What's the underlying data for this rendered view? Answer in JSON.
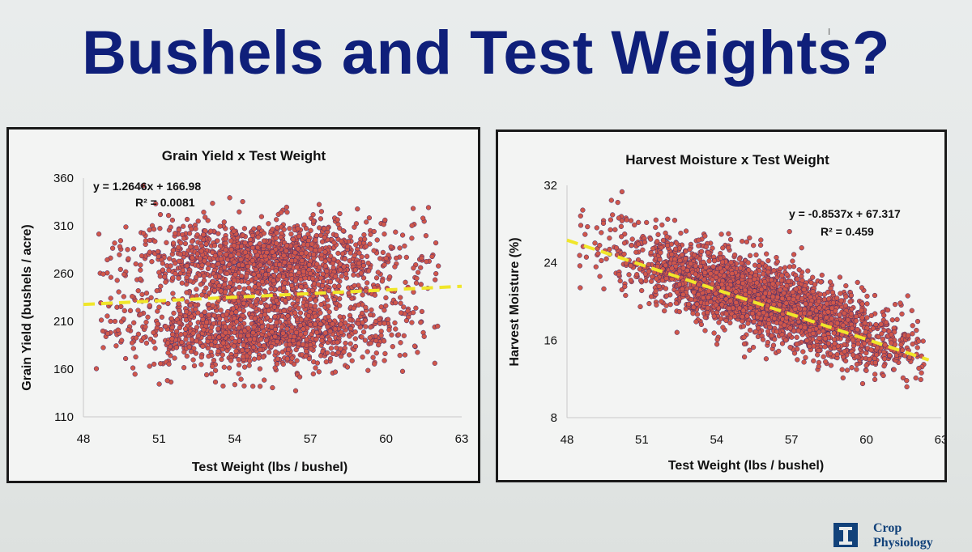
{
  "slide": {
    "title": "Bushels and Test Weights?",
    "logo_text_line1": "Crop",
    "logo_text_line2": "Physiology",
    "cursor_glyph": "I"
  },
  "colors": {
    "title": "#0f1f7a",
    "point_fill": "#d0574a",
    "point_stroke": "#3a2a6e",
    "trendline": "#f0e62a",
    "logo": "#12427a"
  },
  "chart_data": [
    {
      "type": "scatter",
      "title": "Grain Yield x Test Weight",
      "xlabel": "Test Weight (lbs / bushel)",
      "ylabel": "Grain Yield (bushels / acre)",
      "xlim": [
        48,
        63
      ],
      "ylim": [
        110,
        360
      ],
      "x_ticks": [
        "48",
        "51",
        "54",
        "57",
        "60",
        "63"
      ],
      "y_ticks": [
        "110",
        "160",
        "210",
        "260",
        "310",
        "360"
      ],
      "equation": "y = 1.2646x + 166.98",
      "r_squared": "R² = 0.0081",
      "trendline": {
        "slope": 1.2646,
        "intercept": 166.98,
        "x_range": [
          48,
          63
        ],
        "style": "dashed"
      },
      "grid": false,
      "point_cloud": {
        "n_points": 2600,
        "x_range": [
          48.5,
          62.3
        ],
        "clusters": [
          {
            "x_center": 55.5,
            "x_spread": 2.6,
            "y_center": 275,
            "y_spread": 20,
            "weight": 0.45
          },
          {
            "x_center": 55.0,
            "x_spread": 2.6,
            "y_center": 200,
            "y_spread": 22,
            "weight": 0.45
          },
          {
            "x_center": 55.5,
            "x_spread": 3.5,
            "y_center": 240,
            "y_spread": 40,
            "weight": 0.1
          }
        ]
      }
    },
    {
      "type": "scatter",
      "title": "Harvest Moisture x Test Weight",
      "xlabel": "Test Weight (lbs / bushel)",
      "ylabel": "Harvest Moisture (%)",
      "xlim": [
        48,
        63
      ],
      "ylim": [
        8,
        32
      ],
      "x_ticks": [
        "48",
        "51",
        "54",
        "57",
        "60",
        "63"
      ],
      "y_ticks": [
        "8",
        "16",
        "24",
        "32"
      ],
      "equation": "y = -0.8537x + 67.317",
      "r_squared": "R² = 0.459",
      "trendline": {
        "slope": -0.8537,
        "intercept": 67.317,
        "x_range": [
          48,
          62.5
        ],
        "style": "dashed"
      },
      "grid": false,
      "point_cloud": {
        "n_points": 2600,
        "x_range": [
          48.5,
          62.3
        ],
        "clusters": [
          {
            "x_center": 56.0,
            "x_spread": 2.9,
            "slope": -0.85,
            "intercept": 67.5,
            "y_spread": 2.0,
            "weight": 1.0
          }
        ]
      }
    }
  ]
}
